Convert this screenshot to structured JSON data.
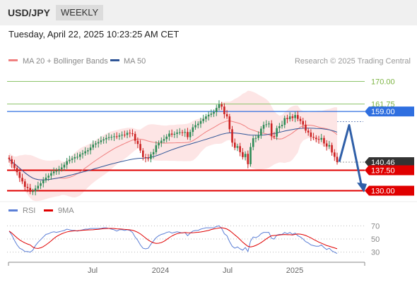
{
  "header": {
    "symbol": "USD/JPY",
    "timeframe": "WEEKLY"
  },
  "timestamp": "Tuesday, April 22, 2025 10:23:25 AM CET",
  "legend": {
    "ma20_label": "MA 20 + Bollinger Bands",
    "ma20_color": "#f08080",
    "ma50_label": "MA 50",
    "ma50_color": "#2f5597",
    "credit": "Research © 2025 Trading Central"
  },
  "rsi_legend": {
    "rsi_label": "RSI",
    "rsi_color": "#5b7fd6",
    "ma_label": "9MA",
    "ma_color": "#e00000"
  },
  "colors": {
    "bull": "#2e8b57",
    "bear": "#cc2222",
    "resistance": "#8dc46a",
    "support": "#e00000",
    "pivot": "#2f6fe0",
    "forecast_arrow": "#2f5fa8"
  },
  "chart_data": [
    {
      "type": "candlestick",
      "timeframe": "weekly",
      "ylim": [
        126,
        174
      ],
      "x_tick_labels": [
        "Jul",
        "2024",
        "Jul",
        "2025"
      ],
      "price_levels": [
        {
          "value": 170.0,
          "label": "170.00",
          "kind": "resistance"
        },
        {
          "value": 161.75,
          "label": "161.75",
          "kind": "resistance"
        },
        {
          "value": 159.0,
          "label": "159.00",
          "kind": "pivot"
        },
        {
          "value": 140.46,
          "label": "140.46",
          "kind": "last-price"
        },
        {
          "value": 137.5,
          "label": "137.50",
          "kind": "support"
        },
        {
          "value": 130.0,
          "label": "130.00",
          "kind": "support"
        }
      ],
      "close": [
        141.5,
        139.8,
        138.3,
        136.8,
        134.7,
        133.4,
        131.4,
        131.0,
        129.6,
        129.8,
        130.8,
        131.8,
        132.7,
        133.8,
        134.8,
        135.5,
        136.4,
        137.0,
        137.4,
        137.9,
        138.5,
        139.5,
        140.8,
        141.3,
        141.8,
        142.3,
        142.4,
        143.3,
        143.7,
        144.4,
        144.8,
        145.8,
        146.9,
        147.3,
        147.8,
        148.4,
        148.8,
        149.3,
        149.6,
        149.7,
        149.9,
        149.8,
        150.2,
        150.5,
        150.4,
        151.2,
        151.0,
        150.8,
        148.3,
        147.1,
        144.7,
        142.3,
        141.9,
        141.6,
        143.3,
        144.1,
        146.6,
        147.5,
        148.3,
        148.9,
        149.8,
        150.9,
        150.5,
        150.8,
        151.3,
        151.4,
        151.2,
        151.5,
        149.6,
        151.5,
        153.2,
        154.0,
        154.5,
        155.5,
        156.3,
        157.2,
        157.8,
        158.2,
        158.8,
        160.3,
        161.6,
        160.8,
        158.0,
        157.2,
        152.5,
        147.6,
        145.7,
        146.3,
        144.1,
        142.3,
        143.5,
        139.7,
        146.0,
        149.2,
        149.3,
        150.2,
        152.7,
        154.1,
        154.3,
        154.6,
        150.0,
        149.8,
        152.9,
        153.6,
        154.1,
        156.6,
        156.2,
        157.2,
        156.6,
        157.7,
        156.3,
        155.5,
        154.2,
        152.0,
        151.3,
        149.7,
        149.4,
        148.9,
        148.7,
        149.3,
        147.3,
        146.2,
        146.7,
        144.0,
        142.4,
        140.46
      ],
      "ma20_bollinger": {
        "ma_color": "#f08080",
        "band_fill": "#fde0e0"
      },
      "ma50": {
        "color": "#2f5597"
      },
      "forecast": "downward arrow from about 140.5 toward 130.00 after a brief rebound"
    },
    {
      "type": "line",
      "name": "RSI",
      "ylim": [
        20,
        80
      ],
      "y_ticks": [
        30,
        50,
        70
      ],
      "series": [
        {
          "name": "RSI",
          "color": "#5b7fd6"
        },
        {
          "name": "9MA",
          "color": "#e00000"
        }
      ],
      "rsi_values": [
        62,
        56,
        48,
        41,
        36,
        34,
        31,
        31,
        30,
        33,
        40,
        45,
        49,
        53,
        57,
        58,
        60,
        61,
        60,
        61,
        62,
        63,
        65,
        64,
        63,
        63,
        62,
        63,
        64,
        65,
        65,
        66,
        66,
        66,
        66,
        66,
        67,
        67,
        66,
        65,
        64,
        62,
        64,
        64,
        63,
        64,
        63,
        60,
        53,
        48,
        41,
        36,
        35,
        36,
        42,
        47,
        52,
        55,
        57,
        58,
        60,
        61,
        59,
        60,
        61,
        60,
        59,
        60,
        55,
        59,
        62,
        63,
        63,
        65,
        66,
        67,
        67,
        67,
        67,
        69,
        70,
        66,
        58,
        55,
        46,
        39,
        36,
        38,
        35,
        33,
        37,
        31,
        47,
        53,
        52,
        54,
        58,
        60,
        60,
        60,
        51,
        50,
        56,
        57,
        57,
        60,
        58,
        60,
        57,
        59,
        55,
        53,
        50,
        46,
        44,
        41,
        40,
        39,
        39,
        41,
        37,
        34,
        36,
        32,
        30,
        28
      ]
    }
  ]
}
